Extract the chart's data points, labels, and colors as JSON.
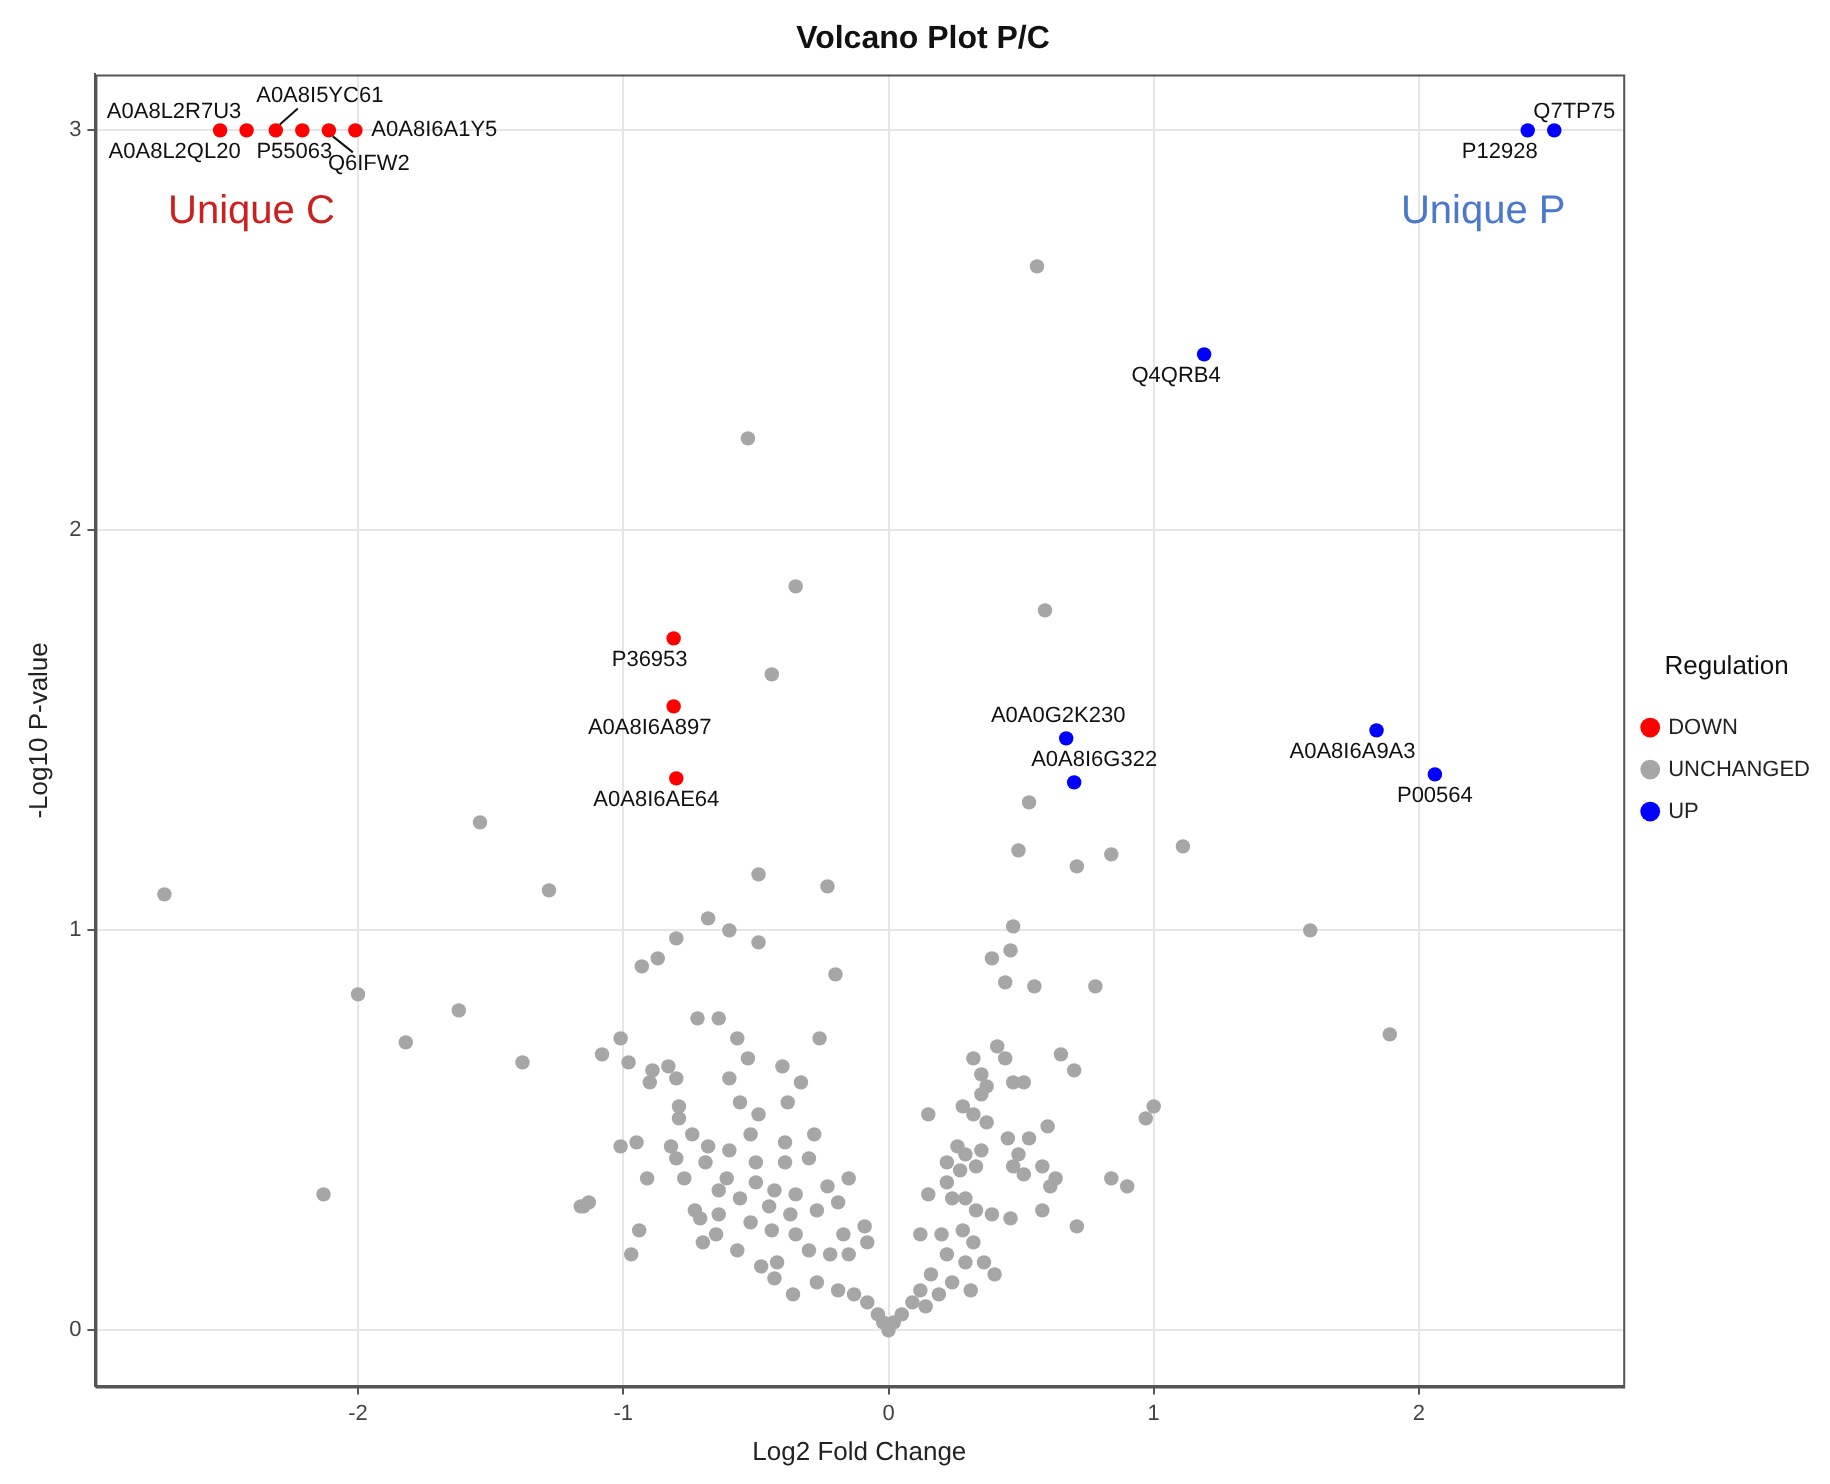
{
  "chart_data": {
    "type": "scatter",
    "title": "Volcano Plot P/C",
    "xlabel": "Log2 Fold Change",
    "ylabel": "-Log10 P-value",
    "legend_title": "Regulation",
    "legend": "right",
    "grid": true,
    "marker": "circle",
    "xlim": [
      -2.99,
      2.77
    ],
    "xticks": [
      -2,
      -1,
      0,
      1,
      2
    ],
    "ylim": [
      -0.14,
      3.14
    ],
    "yticks": [
      0,
      1,
      2,
      3
    ],
    "series": [
      {
        "name": "DOWN",
        "color": "#ff0000",
        "x": [
          -2.52,
          -2.42,
          -2.31,
          -2.21,
          -2.11,
          -2.01,
          -0.81,
          -0.81,
          -0.8
        ],
        "values": [
          3,
          3,
          3,
          3,
          3,
          3,
          1.73,
          1.56,
          1.38
        ]
      },
      {
        "name": "UNCHANGED",
        "color": "#a6a6a6",
        "x": [
          0.56,
          -0.53,
          -0.35,
          -0.44,
          0.59,
          -1.54,
          -1.28,
          -0.49,
          -0.23,
          0.53,
          0.49,
          0.71,
          0.84,
          1.11,
          -0.68,
          -0.8,
          -0.6,
          -0.49,
          -0.93,
          -0.87,
          -0.2,
          0.47,
          0.39,
          0.46,
          0.44,
          0.55,
          0.78,
          -0.72,
          -0.64,
          -0.57,
          -0.26,
          -1.01,
          -1.08,
          -1.38,
          -0.98,
          -0.89,
          -0.83,
          -0.8,
          -0.9,
          -0.53,
          -0.4,
          -0.6,
          -0.33,
          -0.56,
          -0.38,
          -0.79,
          -0.79,
          -0.49,
          -0.74,
          -1.01,
          -0.95,
          -0.82,
          -0.68,
          -0.6,
          -0.52,
          -0.39,
          -0.28,
          -0.8,
          -0.69,
          -0.5,
          -0.39,
          -0.3,
          -0.91,
          -0.77,
          -0.61,
          -0.5,
          -1.15,
          -0.64,
          -0.56,
          -0.43,
          -0.35,
          -0.23,
          -0.15,
          -0.73,
          -0.64,
          -0.45,
          -0.37,
          -0.27,
          -0.19,
          -0.71,
          -0.52,
          -0.94,
          -0.65,
          -0.44,
          -0.35,
          -0.17,
          -0.09,
          -0.97,
          -0.7,
          -0.57,
          -0.48,
          -0.42,
          -0.3,
          -0.22,
          -0.15,
          -0.08,
          -0.43,
          -0.36,
          -0.27,
          -0.19,
          -0.13,
          -0.08,
          -0.04,
          -0.02,
          0,
          0.02,
          0.05,
          0.09,
          0.14,
          0.12,
          0.19,
          0.16,
          0.24,
          0.31,
          0.12,
          0.22,
          0.29,
          0.36,
          0.4,
          0.15,
          0.24,
          0.2,
          0.28,
          0.32,
          0.39,
          0.46,
          0.58,
          0.71,
          0.22,
          0.29,
          0.33,
          0.22,
          0.26,
          0.29,
          0.35,
          0.33,
          0.27,
          0.45,
          0.53,
          0.6,
          0.49,
          0.47,
          0.51,
          0.58,
          0.61,
          0.63,
          0.84,
          0.9,
          0.97,
          1,
          0.15,
          0.28,
          0.32,
          0.37,
          0.32,
          0.35,
          0.37,
          0.35,
          0.41,
          0.44,
          0.47,
          0.51,
          0.65,
          0.7,
          -2.73,
          -2,
          -1.62,
          -1.82,
          -2.13,
          -1.16,
          -1.13,
          1.59,
          1.89
        ],
        "values": [
          2.66,
          2.23,
          1.86,
          1.64,
          1.8,
          1.27,
          1.1,
          1.14,
          1.11,
          1.32,
          1.2,
          1.16,
          1.19,
          1.21,
          1.03,
          0.98,
          1,
          0.97,
          0.91,
          0.93,
          0.89,
          1.01,
          0.93,
          0.95,
          0.87,
          0.86,
          0.86,
          0.78,
          0.78,
          0.73,
          0.73,
          0.73,
          0.69,
          0.67,
          0.67,
          0.65,
          0.66,
          0.63,
          0.62,
          0.68,
          0.66,
          0.63,
          0.62,
          0.57,
          0.57,
          0.56,
          0.53,
          0.54,
          0.49,
          0.46,
          0.47,
          0.46,
          0.46,
          0.45,
          0.49,
          0.47,
          0.49,
          0.43,
          0.42,
          0.42,
          0.42,
          0.43,
          0.38,
          0.38,
          0.38,
          0.37,
          0.31,
          0.35,
          0.33,
          0.35,
          0.34,
          0.36,
          0.38,
          0.3,
          0.29,
          0.31,
          0.29,
          0.3,
          0.32,
          0.28,
          0.27,
          0.25,
          0.24,
          0.25,
          0.24,
          0.24,
          0.26,
          0.19,
          0.22,
          0.2,
          0.16,
          0.17,
          0.2,
          0.19,
          0.19,
          0.22,
          0.13,
          0.09,
          0.12,
          0.1,
          0.09,
          0.07,
          0.04,
          0.02,
          0,
          0.02,
          0.04,
          0.07,
          0.06,
          0.1,
          0.09,
          0.14,
          0.12,
          0.1,
          0.24,
          0.19,
          0.17,
          0.17,
          0.14,
          0.34,
          0.33,
          0.24,
          0.25,
          0.22,
          0.29,
          0.28,
          0.3,
          0.26,
          0.37,
          0.33,
          0.3,
          0.42,
          0.46,
          0.44,
          0.45,
          0.41,
          0.4,
          0.48,
          0.48,
          0.51,
          0.44,
          0.41,
          0.39,
          0.41,
          0.36,
          0.38,
          0.38,
          0.36,
          0.53,
          0.56,
          0.54,
          0.56,
          0.54,
          0.52,
          0.68,
          0.64,
          0.61,
          0.59,
          0.71,
          0.68,
          0.62,
          0.62,
          0.69,
          0.65,
          1.09,
          0.84,
          0.8,
          0.72,
          0.34,
          0.31,
          0.32,
          1,
          0.74
        ]
      },
      {
        "name": "UP",
        "color": "#0000ff",
        "x": [
          2.51,
          2.41,
          1.19,
          0.67,
          0.7,
          1.84,
          2.06
        ],
        "values": [
          3,
          3,
          2.44,
          1.48,
          1.37,
          1.5,
          1.39
        ]
      }
    ],
    "annotations": [
      {
        "text": "A0A8L2R7U3",
        "x": -2.52,
        "y": 3
      },
      {
        "text": "A0A8L2QL20",
        "x": -2.42,
        "y": 3
      },
      {
        "text": "A0A8I5YC61",
        "x": -2.31,
        "y": 3
      },
      {
        "text": "P55063",
        "x": -2.21,
        "y": 3
      },
      {
        "text": "Q6IFW2",
        "x": -2.11,
        "y": 3
      },
      {
        "text": "A0A8I6A1Y5",
        "x": -2.01,
        "y": 3
      },
      {
        "text": "P36953",
        "x": -0.81,
        "y": 1.73
      },
      {
        "text": "A0A8I6A897",
        "x": -0.81,
        "y": 1.56
      },
      {
        "text": "A0A8I6AE64",
        "x": -0.8,
        "y": 1.38
      },
      {
        "text": "Q7TP75",
        "x": 2.51,
        "y": 3
      },
      {
        "text": "P12928",
        "x": 2.41,
        "y": 3
      },
      {
        "text": "Q4QRB4",
        "x": 1.19,
        "y": 2.44
      },
      {
        "text": "A0A0G2K230",
        "x": 0.67,
        "y": 1.48
      },
      {
        "text": "A0A8I6G322",
        "x": 0.7,
        "y": 1.37
      },
      {
        "text": "A0A8I6A9A3",
        "x": 1.84,
        "y": 1.5
      },
      {
        "text": "P00564",
        "x": 2.06,
        "y": 1.39
      },
      "Unique C",
      "Unique P"
    ]
  }
}
